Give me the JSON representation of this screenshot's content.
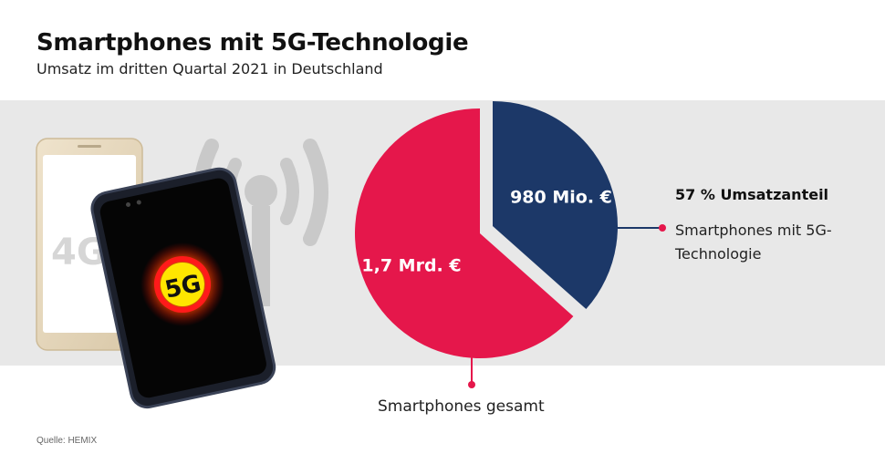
{
  "header": {
    "title": "Smartphones mit 5G-Technologie",
    "subtitle": "Umsatz im dritten Quartal 2021 in Deutschland"
  },
  "illustration": {
    "badge_4g": "4G",
    "badge_5g": "5G",
    "icons": [
      "phone-icon",
      "signal-tower-icon"
    ]
  },
  "chart_data": {
    "type": "pie",
    "slices": [
      {
        "label": "980 Mio. €",
        "value": 980,
        "percent": 57,
        "color": "#1c3868"
      },
      {
        "label": "1,7 Mrd. €",
        "value": 1700,
        "color": "#e5174b"
      }
    ],
    "annotations": {
      "share_title": "57 % Umsatzanteil",
      "share_label": "Smartphones mit 5G-Technologie",
      "total_label": "Smartphones gesamt"
    }
  },
  "footer": {
    "source": "Quelle: HEMIX"
  },
  "colors": {
    "navy": "#1c3868",
    "red": "#e5174b",
    "band": "#e8e8e8"
  }
}
